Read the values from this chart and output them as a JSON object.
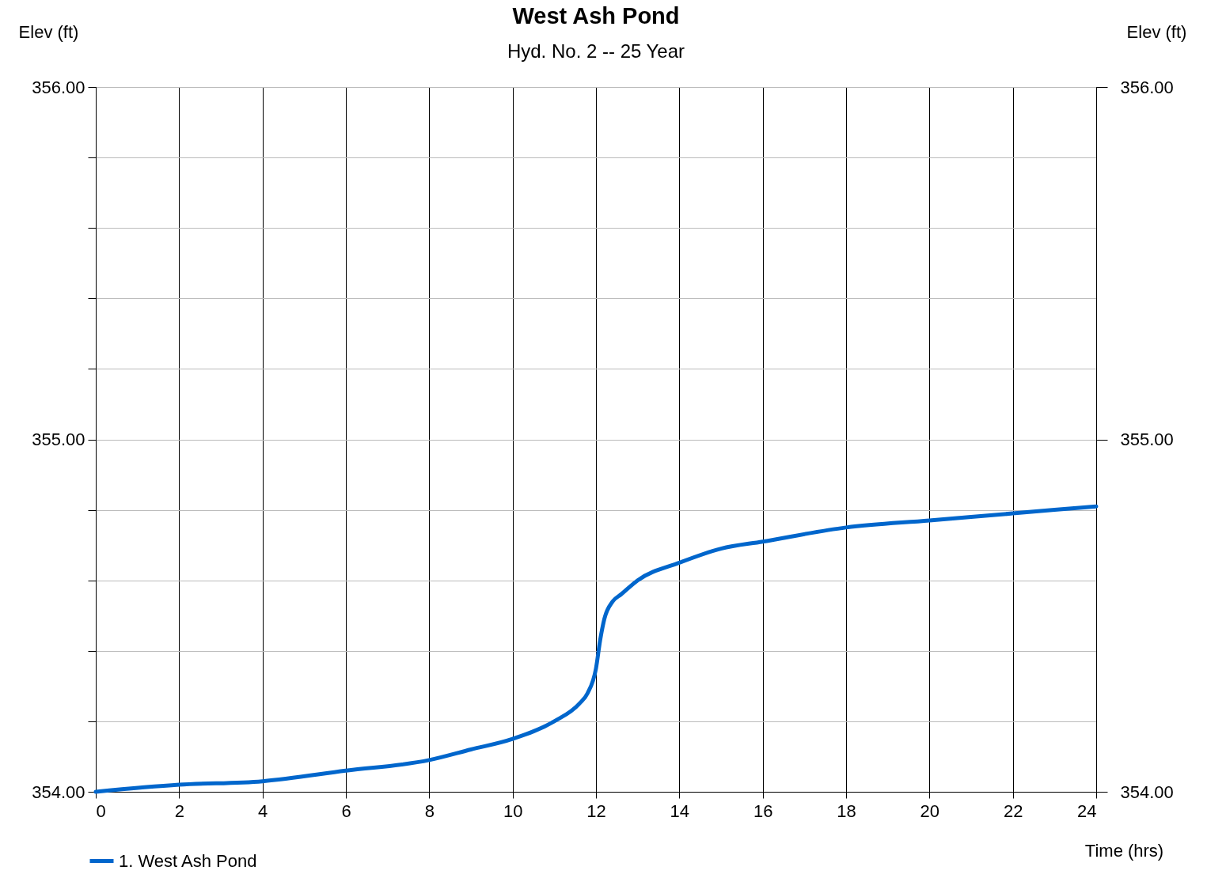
{
  "chart_data": {
    "type": "line",
    "title": "West Ash Pond",
    "subtitle": "Hyd. No. 2 -- 25 Year",
    "xlabel": "Time (hrs)",
    "ylabel": "Elev (ft)",
    "y2label": "Elev (ft)",
    "series": [
      {
        "name": "1. West Ash Pond",
        "color": "#0066cc",
        "x": [
          0,
          2,
          4,
          6,
          8,
          9,
          10,
          11,
          11.6,
          11.8,
          12,
          12.1,
          12.2,
          12.4,
          12.6,
          13,
          14,
          15,
          16,
          18,
          20,
          22,
          24
        ],
        "values": [
          354.0,
          354.02,
          354.03,
          354.06,
          354.09,
          354.12,
          354.15,
          354.2,
          354.25,
          354.28,
          354.35,
          354.43,
          354.49,
          354.54,
          354.56,
          354.6,
          354.65,
          354.69,
          354.71,
          354.75,
          354.77,
          354.79,
          354.81
        ]
      }
    ],
    "xlim": [
      0,
      24
    ],
    "xticks": [
      0,
      2,
      4,
      6,
      8,
      10,
      12,
      14,
      16,
      18,
      20,
      22,
      24
    ],
    "ylim": [
      354,
      356
    ],
    "yticks": [
      {
        "value": 354,
        "label": "354.00"
      },
      {
        "value": 354.2,
        "label": null
      },
      {
        "value": 354.4,
        "label": null
      },
      {
        "value": 354.6,
        "label": null
      },
      {
        "value": 354.8,
        "label": null
      },
      {
        "value": 355,
        "label": "355.00"
      },
      {
        "value": 355.2,
        "label": null
      },
      {
        "value": 355.4,
        "label": null
      },
      {
        "value": 355.6,
        "label": null
      },
      {
        "value": 355.8,
        "label": null
      },
      {
        "value": 356,
        "label": "356.00"
      }
    ],
    "y2lim": [
      354,
      356
    ],
    "y2ticks": [
      {
        "value": 354,
        "label": "354.00"
      },
      {
        "value": 355,
        "label": "355.00"
      },
      {
        "value": 356,
        "label": "356.00"
      }
    ],
    "grid": true,
    "legend": "bottom left",
    "marker": "none",
    "line_style": "solid"
  }
}
